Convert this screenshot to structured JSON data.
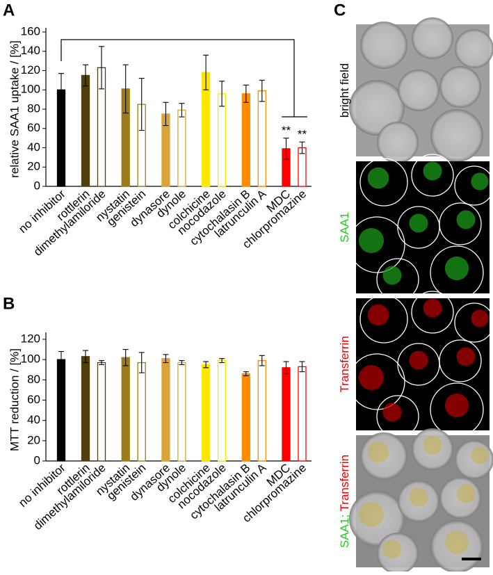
{
  "panel_letters": [
    "A",
    "B",
    "C"
  ],
  "chart_data": [
    {
      "type": "bar",
      "y_label": "relative SAA1 uptake / [%]",
      "categories": [
        "no inhibitor",
        "rottlerin",
        "dimethylamiloride",
        "nystatin",
        "genistein",
        "dynasore",
        "dynole",
        "colchicine",
        "nocodazole",
        "cytochalasin B",
        "latrunculin A",
        "MDC",
        "chlorpromazine"
      ],
      "values": [
        100,
        115,
        123,
        101,
        85,
        75,
        79,
        118,
        96,
        96,
        99,
        39,
        40
      ],
      "errors": [
        17,
        11,
        22,
        25,
        27,
        12,
        7,
        18,
        13,
        9,
        11,
        11,
        6
      ],
      "colors": [
        "#000000",
        "#4f3f0c",
        "#4f3f0c",
        "#9c7c18",
        "#9c7c18",
        "#d8a43a",
        "#d8a43a",
        "#ffe600",
        "#ffe600",
        "#ff8c00",
        "#ff8c00",
        "#ff0000",
        "#ff0000"
      ],
      "hollow": [
        false,
        false,
        true,
        false,
        true,
        false,
        true,
        false,
        true,
        false,
        true,
        false,
        true
      ],
      "annotations": [
        null,
        null,
        null,
        null,
        null,
        null,
        null,
        null,
        null,
        null,
        null,
        "**",
        "**"
      ],
      "ylim": [
        0,
        160
      ],
      "yticks": [
        0,
        20,
        40,
        60,
        80,
        100,
        120,
        140,
        160
      ]
    },
    {
      "type": "bar",
      "y_label": "MTT reduction / [%]",
      "categories": [
        "no inhibitor",
        "rottlerin",
        "dimethylamiloride",
        "nystatin",
        "genistein",
        "dynasore",
        "dynole",
        "colchicine",
        "nocodazole",
        "cytochalasin B",
        "latrunculin A",
        "MDC",
        "chlorpromazine"
      ],
      "values": [
        100,
        103,
        97,
        102,
        97,
        101,
        97,
        95,
        99,
        86,
        99,
        92,
        93
      ],
      "errors": [
        8,
        6,
        2,
        8,
        10,
        4,
        2,
        3,
        2,
        2,
        5,
        6,
        5
      ],
      "colors": [
        "#000000",
        "#4f3f0c",
        "#4f3f0c",
        "#9c7c18",
        "#9c7c18",
        "#d8a43a",
        "#d8a43a",
        "#ffe600",
        "#ffe600",
        "#ff8c00",
        "#ff8c00",
        "#ff0000",
        "#ff0000"
      ],
      "hollow": [
        false,
        false,
        true,
        false,
        true,
        false,
        true,
        false,
        true,
        false,
        true,
        false,
        true
      ],
      "ylim": [
        0,
        120
      ],
      "yticks": [
        0,
        20,
        40,
        60,
        80,
        100,
        120
      ]
    }
  ],
  "images": [
    {
      "label_parts": [
        {
          "text": "bright field",
          "color": "#000000"
        }
      ]
    },
    {
      "label_parts": [
        {
          "text": "SAA1",
          "color": "#22cc22"
        }
      ]
    },
    {
      "label_parts": [
        {
          "text": "Transferrin",
          "color": "#ee0000"
        }
      ]
    },
    {
      "label_parts": [
        {
          "text": "SAA1; ",
          "color": "#22cc22"
        },
        {
          "text": "Transferrin",
          "color": "#ee0000"
        }
      ]
    }
  ]
}
